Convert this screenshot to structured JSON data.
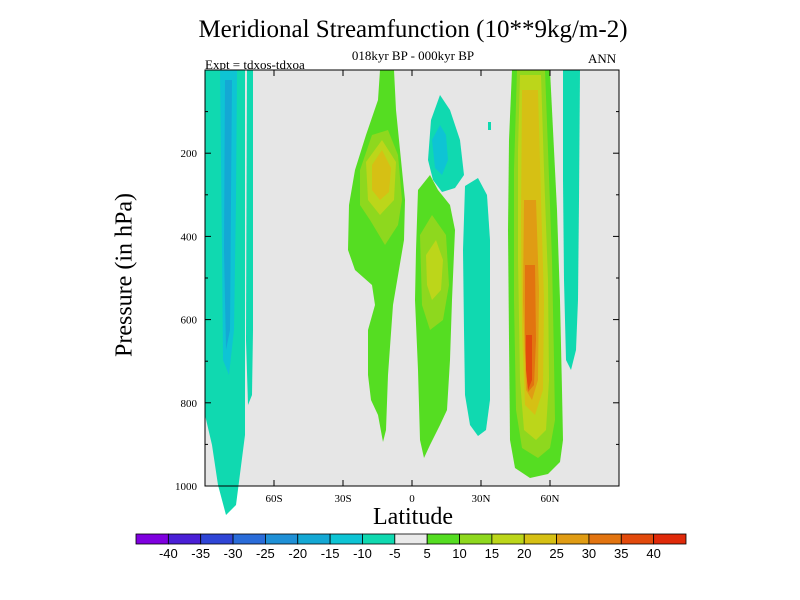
{
  "chart_data": {
    "type": "contour",
    "title": "Meridional Streamfunction (10**9kg/m-2)",
    "subtitle": "018kyr BP - 000kyr BP",
    "experiment_label": "Expt = tdxos-tdxoa",
    "season": "ANN",
    "xlabel": "Latitude",
    "ylabel": "Pressure (in hPa)",
    "x_ticks": [
      {
        "value": -60,
        "label": "60S"
      },
      {
        "value": -30,
        "label": "30S"
      },
      {
        "value": 0,
        "label": "0"
      },
      {
        "value": 30,
        "label": "30N"
      },
      {
        "value": 60,
        "label": "60N"
      }
    ],
    "y_ticks": [
      {
        "value": 200,
        "label": "200"
      },
      {
        "value": 400,
        "label": "400"
      },
      {
        "value": 600,
        "label": "600"
      },
      {
        "value": 800,
        "label": "800"
      },
      {
        "value": 1000,
        "label": "1000"
      }
    ],
    "xlim": [
      -90,
      90
    ],
    "ylim": [
      1000,
      0
    ],
    "colorbar": {
      "levels": [
        "-40",
        "-35",
        "-30",
        "-25",
        "-20",
        "-15",
        "-10",
        "-5",
        "5",
        "10",
        "15",
        "20",
        "25",
        "30",
        "35",
        "40"
      ],
      "colors": [
        "#7f00df",
        "#4a1fd6",
        "#2f45d6",
        "#2a6cd9",
        "#1f90d6",
        "#14a8d4",
        "#0ec4d4",
        "#10d9b0",
        "#eaeaea",
        "#55dd22",
        "#8ed81e",
        "#bcd61a",
        "#d6c014",
        "#e09c14",
        "#e27410",
        "#e24a0c",
        "#e02a0a"
      ]
    },
    "features": [
      {
        "name": "negative cell, southern high latitudes",
        "lat_range": [
          -90,
          -72
        ],
        "p_range": [
          20,
          930
        ],
        "peak": -15
      },
      {
        "name": "negative cell, near 70S",
        "lat_range": [
          -75,
          -70
        ],
        "p_range": [
          20,
          790
        ],
        "peak": -10
      },
      {
        "name": "positive band, tropics south",
        "lat_range": [
          -25,
          -10
        ],
        "p_range": [
          20,
          940
        ],
        "peak": 20
      },
      {
        "name": "negative cell, upper tropics",
        "lat_range": [
          5,
          20
        ],
        "p_range": [
          20,
          320
        ],
        "peak": -15
      },
      {
        "name": "positive band, tropics north",
        "lat_range": [
          0,
          15
        ],
        "p_range": [
          380,
          960
        ],
        "peak": 15
      },
      {
        "name": "negative band, 25N-35N",
        "lat_range": [
          22,
          35
        ],
        "p_range": [
          120,
          940
        ],
        "peak": -10
      },
      {
        "name": "positive cell, northern midlatitudes",
        "lat_range": [
          45,
          65
        ],
        "p_range": [
          20,
          990
        ],
        "peak": 40
      },
      {
        "name": "negative band, 67N",
        "lat_range": [
          66,
          72
        ],
        "p_range": [
          20,
          720
        ],
        "peak": -10
      }
    ]
  }
}
